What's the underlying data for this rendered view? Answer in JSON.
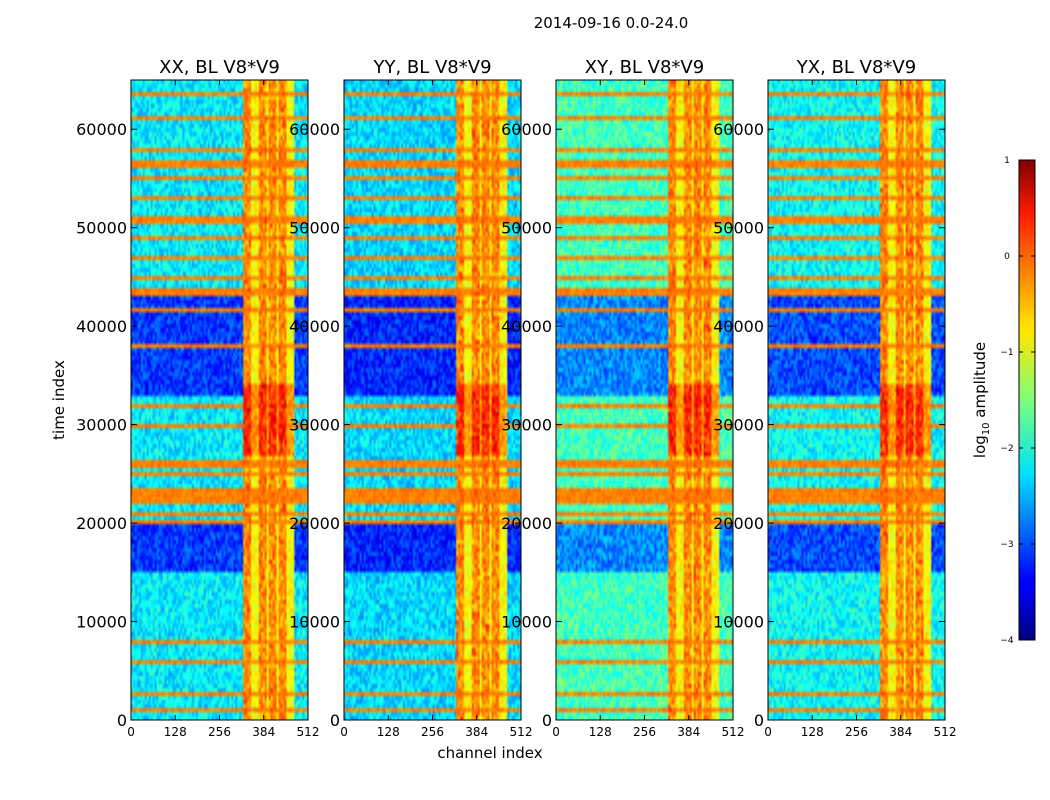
{
  "chart_data": {
    "type": "heatmap",
    "suptitle": "2014-09-16 0.0-24.0",
    "xlabel": "channel index",
    "ylabel": "time index",
    "xlim": [
      0,
      512
    ],
    "ylim": [
      0,
      65000
    ],
    "xticks": [
      0,
      128,
      256,
      384,
      512
    ],
    "yticks": [
      0,
      10000,
      20000,
      30000,
      40000,
      50000,
      60000
    ],
    "panels": [
      {
        "title": "XX, BL V8*V9",
        "base_level": -2.2
      },
      {
        "title": "YY, BL V8*V9",
        "base_level": -2.3
      },
      {
        "title": "XY, BL V8*V9",
        "base_level": -1.8
      },
      {
        "title": "YX, BL V8*V9",
        "base_level": -2.1
      }
    ],
    "rfi_channel_band": [
      324,
      475
    ],
    "strong_channels": [
      335,
      380,
      410,
      440
    ],
    "quiet_time_ranges": [
      [
        15000,
        20000
      ],
      [
        33000,
        44000
      ]
    ],
    "rfi_time_rows": [
      1000,
      2500,
      6000,
      8000,
      20000,
      21000,
      22000,
      22700,
      23500,
      25000,
      26000,
      30000,
      32000,
      38000,
      41500,
      43500,
      45000,
      47000,
      49000,
      50500,
      51000,
      53000,
      55000,
      56500,
      58000,
      61000,
      63500
    ],
    "colorbar": {
      "label": "log₁₀ amplitude",
      "label_prefix": "log",
      "label_sub": "10",
      "label_suffix": " amplitude",
      "min": -4,
      "max": 1,
      "ticks": [
        1,
        0,
        -1,
        -2,
        -3,
        -4
      ],
      "tick_labels": [
        "1",
        "0",
        "−1",
        "−2",
        "−3",
        "−4"
      ],
      "colormap": "jet"
    }
  }
}
